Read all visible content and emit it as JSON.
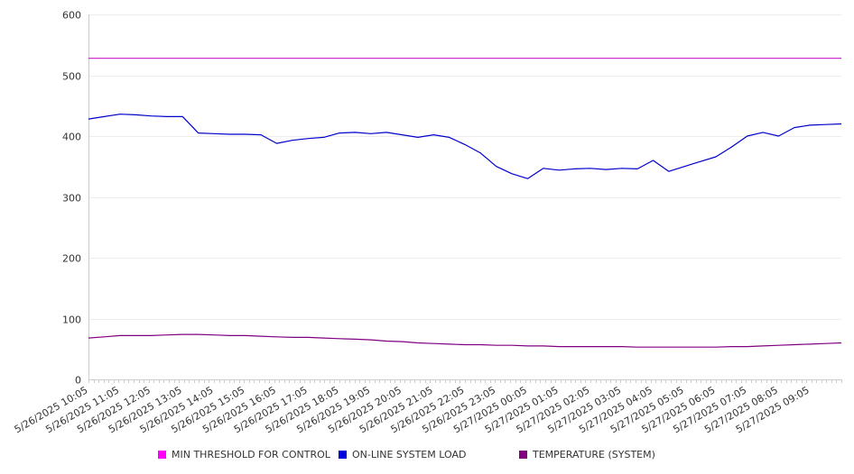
{
  "chart_data": {
    "type": "line",
    "title": "",
    "xlabel": "",
    "ylabel": "",
    "ylim": [
      0,
      600
    ],
    "yticks": [
      0,
      100,
      200,
      300,
      400,
      500,
      600
    ],
    "grid": true,
    "legend_position": "bottom",
    "x_tick_labels": [
      "5/26/2025 10:05",
      "5/26/2025 11:05",
      "5/26/2025 12:05",
      "5/26/2025 13:05",
      "5/26/2025 14:05",
      "5/26/2025 15:05",
      "5/26/2025 16:05",
      "5/26/2025 17:05",
      "5/26/2025 18:05",
      "5/26/2025 19:05",
      "5/26/2025 20:05",
      "5/26/2025 21:05",
      "5/26/2025 22:05",
      "5/26/2025 23:05",
      "5/27/2025 00:05",
      "5/27/2025 01:05",
      "5/27/2025 02:05",
      "5/27/2025 03:05",
      "5/27/2025 04:05",
      "5/27/2025 05:05",
      "5/27/2025 06:05",
      "5/27/2025 07:05",
      "5/27/2025 08:05",
      "5/27/2025 09:05"
    ],
    "x": [
      "5/26/2025 10:05",
      "5/26/2025 10:35",
      "5/26/2025 11:05",
      "5/26/2025 11:35",
      "5/26/2025 12:05",
      "5/26/2025 12:35",
      "5/26/2025 13:05",
      "5/26/2025 13:35",
      "5/26/2025 14:05",
      "5/26/2025 14:35",
      "5/26/2025 15:05",
      "5/26/2025 15:35",
      "5/26/2025 16:05",
      "5/26/2025 16:35",
      "5/26/2025 17:05",
      "5/26/2025 17:35",
      "5/26/2025 18:05",
      "5/26/2025 18:35",
      "5/26/2025 19:05",
      "5/26/2025 19:35",
      "5/26/2025 20:05",
      "5/26/2025 20:35",
      "5/26/2025 21:05",
      "5/26/2025 21:35",
      "5/26/2025 22:05",
      "5/26/2025 22:35",
      "5/26/2025 23:05",
      "5/26/2025 23:35",
      "5/27/2025 00:05",
      "5/27/2025 00:35",
      "5/27/2025 01:05",
      "5/27/2025 01:35",
      "5/27/2025 02:05",
      "5/27/2025 02:35",
      "5/27/2025 03:05",
      "5/27/2025 03:35",
      "5/27/2025 04:05",
      "5/27/2025 04:35",
      "5/27/2025 05:05",
      "5/27/2025 05:35",
      "5/27/2025 06:05",
      "5/27/2025 06:35",
      "5/27/2025 07:05",
      "5/27/2025 07:35",
      "5/27/2025 08:05",
      "5/27/2025 08:35",
      "5/27/2025 09:05",
      "5/27/2025 09:35",
      "5/27/2025 10:00"
    ],
    "series": [
      {
        "name": "MIN THRESHOLD FOR CONTROL",
        "color": "#cc33cc",
        "values": [
          528,
          528,
          528,
          528,
          528,
          528,
          528,
          528,
          528,
          528,
          528,
          528,
          528,
          528,
          528,
          528,
          528,
          528,
          528,
          528,
          528,
          528,
          528,
          528,
          528,
          528,
          528,
          528,
          528,
          528,
          528,
          528,
          528,
          528,
          528,
          528,
          528,
          528,
          528,
          528,
          528,
          528,
          528,
          528,
          528,
          528,
          528,
          528,
          528
        ]
      },
      {
        "name": "ON-LINE SYSTEM LOAD",
        "color": "#0000cc",
        "values": [
          428,
          432,
          436,
          435,
          433,
          432,
          432,
          405,
          404,
          403,
          403,
          402,
          388,
          393,
          396,
          398,
          405,
          406,
          404,
          406,
          402,
          398,
          402,
          398,
          386,
          372,
          350,
          338,
          330,
          347,
          344,
          346,
          347,
          345,
          347,
          346,
          360,
          342,
          350,
          358,
          366,
          382,
          400,
          406,
          400,
          414,
          418,
          419,
          420
        ]
      },
      {
        "name": "TEMPERATURE (SYSTEM)",
        "color": "#800080",
        "values": [
          68,
          70,
          72,
          72,
          72,
          73,
          74,
          74,
          73,
          72,
          72,
          71,
          70,
          69,
          69,
          68,
          67,
          66,
          65,
          63,
          62,
          60,
          59,
          58,
          57,
          57,
          56,
          56,
          55,
          55,
          54,
          54,
          54,
          54,
          54,
          53,
          53,
          53,
          53,
          53,
          53,
          54,
          54,
          55,
          56,
          57,
          58,
          59,
          60
        ]
      }
    ]
  }
}
